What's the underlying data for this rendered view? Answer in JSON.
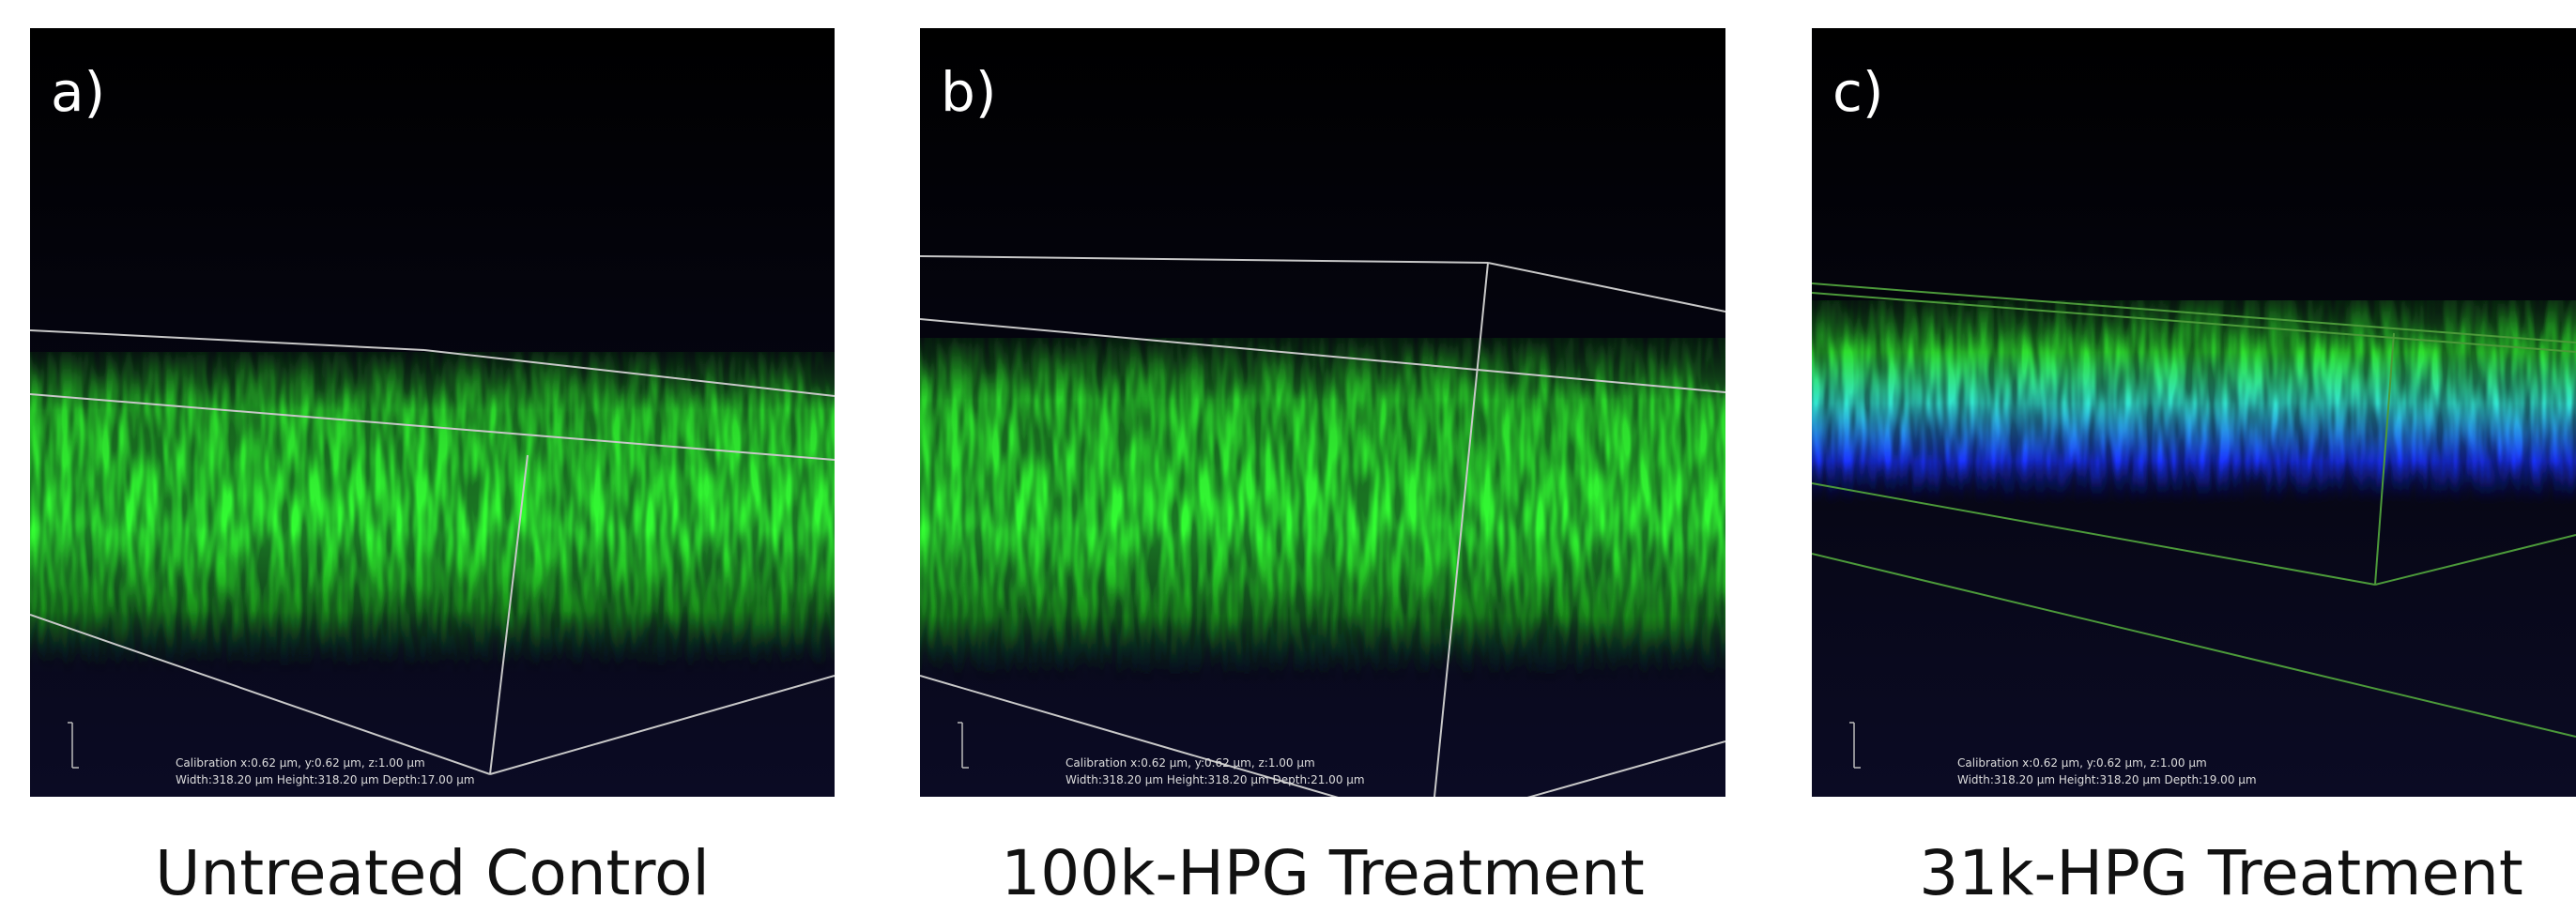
{
  "panels": [
    {
      "label": "a)",
      "caption": "Untreated Control",
      "calibration": [
        "Calibration x:0.62 µm, y:0.62 µm, z:1.00 µm",
        "Width:318.20 µm Height:318.20 µm Depth:17.00 µm"
      ]
    },
    {
      "label": "b)",
      "caption": "100k-HPG Treatment",
      "calibration": [
        "Calibration x:0.62 µm, y:0.62 µm, z:1.00 µm",
        "Width:318.20 µm Height:318.20 µm Depth:21.00 µm"
      ]
    },
    {
      "label": "c)",
      "caption": "31k-HPG Treatment",
      "calibration": [
        "Calibration x:0.62 µm, y:0.62 µm, z:1.00 µm",
        "Width:318.20 µm Height:318.20 µm Depth:19.00 µm"
      ]
    }
  ]
}
